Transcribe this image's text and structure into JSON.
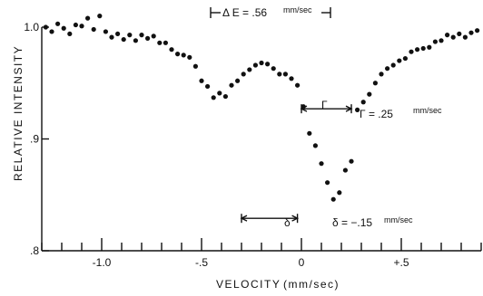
{
  "chart_data": {
    "type": "scatter",
    "xlabel": "VELOCITY",
    "xlabel_unit": "(mm/sec)",
    "ylabel": "RELATIVE  INTENSITY",
    "xlim": [
      -1.3,
      0.9
    ],
    "ylim": [
      0.8,
      1.0
    ],
    "x_ticks": [
      -1.0,
      -0.5,
      0,
      0.5
    ],
    "x_tick_labels": [
      "-1.0",
      "-.5",
      "0",
      "+.5"
    ],
    "x_minor_step": 0.1,
    "y_ticks": [
      0.8,
      0.9,
      1.0
    ],
    "y_tick_labels": [
      ".8",
      ".9",
      "1.0"
    ],
    "grid": false,
    "annotations": {
      "delta_e": {
        "label": "Δ E = .56",
        "unit": "mm/sec"
      },
      "gamma": {
        "symbol": "Γ",
        "label": "Γ = .25",
        "unit": "mm/sec",
        "x_range": [
          0,
          0.25
        ],
        "y": 0.927
      },
      "delta": {
        "symbol": "δ",
        "label": "δ = −.15",
        "unit": "mm/sec",
        "x_range": [
          -0.3,
          -0.02
        ],
        "y": 0.829
      }
    },
    "series": [
      {
        "x": [
          -1.28,
          -1.25,
          -1.22,
          -1.19,
          -1.16,
          -1.13,
          -1.1,
          -1.07,
          -1.04,
          -1.01,
          -0.98,
          -0.95,
          -0.92,
          -0.89,
          -0.86,
          -0.83,
          -0.8,
          -0.77,
          -0.74,
          -0.71,
          -0.68,
          -0.65,
          -0.62,
          -0.59,
          -0.56,
          -0.53,
          -0.5,
          -0.47,
          -0.44,
          -0.41,
          -0.38,
          -0.35,
          -0.32,
          -0.29,
          -0.26,
          -0.23,
          -0.2,
          -0.17,
          -0.14,
          -0.11,
          -0.08,
          -0.05,
          -0.02,
          0.01,
          0.04,
          0.07,
          0.1,
          0.13,
          0.16,
          0.19,
          0.22,
          0.25,
          0.28,
          0.31,
          0.34,
          0.37,
          0.4,
          0.43,
          0.46,
          0.49,
          0.52,
          0.55,
          0.58,
          0.61,
          0.64,
          0.67,
          0.7,
          0.73,
          0.76,
          0.79,
          0.82,
          0.85,
          0.88
        ],
        "y": [
          1.0,
          0.996,
          1.003,
          0.999,
          0.994,
          1.002,
          1.001,
          1.008,
          0.998,
          1.01,
          0.996,
          0.991,
          0.994,
          0.989,
          0.993,
          0.988,
          0.993,
          0.99,
          0.992,
          0.986,
          0.986,
          0.98,
          0.976,
          0.975,
          0.973,
          0.965,
          0.952,
          0.947,
          0.937,
          0.941,
          0.938,
          0.948,
          0.952,
          0.958,
          0.962,
          0.966,
          0.968,
          0.967,
          0.963,
          0.958,
          0.958,
          0.954,
          0.948,
          0.929,
          0.905,
          0.894,
          0.878,
          0.861,
          0.846,
          0.852,
          0.872,
          0.88,
          0.926,
          0.933,
          0.94,
          0.95,
          0.958,
          0.963,
          0.966,
          0.97,
          0.972,
          0.978,
          0.98,
          0.981,
          0.982,
          0.987,
          0.988,
          0.993,
          0.991,
          0.994,
          0.991,
          0.995,
          0.997
        ]
      }
    ]
  }
}
